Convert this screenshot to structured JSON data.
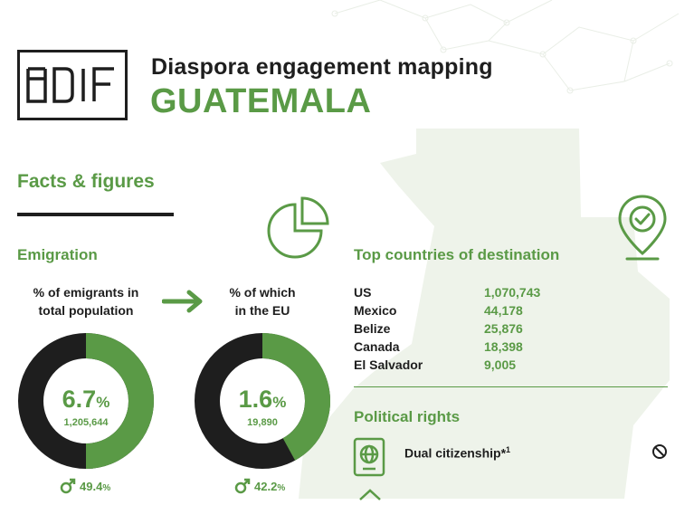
{
  "header": {
    "logo_text": "EUDIF",
    "title": "Diaspora engagement mapping",
    "country": "GUATEMALA"
  },
  "section": {
    "title": "Facts & figures"
  },
  "emigration": {
    "heading": "Emigration",
    "left_caption_line1": "% of emigrants in",
    "left_caption_line2": "total population",
    "right_caption_line1": "% of which",
    "right_caption_line2": "in the EU",
    "left_donut": {
      "percent": "6.7",
      "percent_sign": "%",
      "count": "1,205,644",
      "male_percent": "49.4",
      "male_sign": "%",
      "fill_fraction": 0.5,
      "fill_color": "#5a9a46",
      "base_color": "#1e1e1e"
    },
    "right_donut": {
      "percent": "1.6",
      "percent_sign": "%",
      "count": "19,890",
      "male_percent": "42.2",
      "male_sign": "%",
      "fill_fraction": 0.42,
      "fill_color": "#5a9a46",
      "base_color": "#1e1e1e"
    }
  },
  "destinations": {
    "heading": "Top countries of destination",
    "rows": [
      {
        "country": "US",
        "value": "1,070,743"
      },
      {
        "country": "Mexico",
        "value": "44,178"
      },
      {
        "country": "Belize",
        "value": "25,876"
      },
      {
        "country": "Canada",
        "value": "18,398"
      },
      {
        "country": "El Salvador",
        "value": "9,005"
      }
    ]
  },
  "political_rights": {
    "heading": "Political rights",
    "dual_citizenship_label": "Dual citizenship*",
    "dual_citizenship_note": "1"
  },
  "icons": {
    "arrow": "arrow-right-icon",
    "pie": "pie-chart-icon",
    "pin": "location-check-icon",
    "male": "male-symbol-icon",
    "passport": "passport-globe-icon",
    "not_allowed": "prohibited-icon",
    "vote": "ballot-icon"
  },
  "colors": {
    "accent": "#5a9a46",
    "dark": "#1e1e1e",
    "map_tint": "#eef3ea"
  }
}
